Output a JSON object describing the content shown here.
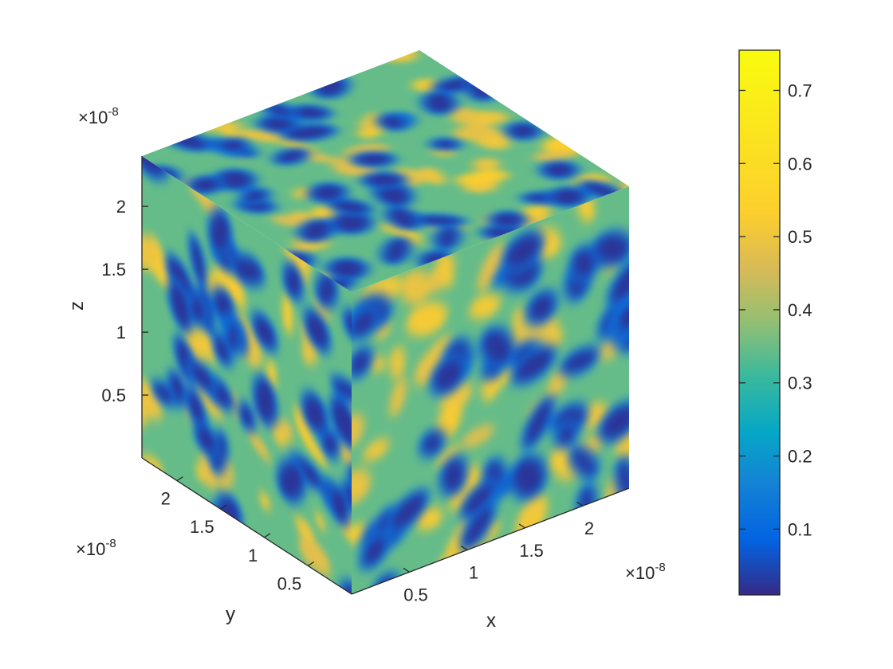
{
  "chart_data": {
    "type": "heatmap",
    "subtype": "3d-volume-slice-cube",
    "title": "",
    "xlabel": "x",
    "ylabel": "y",
    "zlabel": "z",
    "x_ticks": [
      "0.5",
      "1",
      "1.5",
      "2"
    ],
    "y_ticks": [
      "0.5",
      "1",
      "1.5",
      "2"
    ],
    "z_ticks": [
      "0.5",
      "1",
      "1.5",
      "2"
    ],
    "x_tick_values": [
      0.5,
      1,
      1.5,
      2
    ],
    "y_tick_values": [
      0.5,
      1,
      1.5,
      2
    ],
    "z_tick_values": [
      0.5,
      1,
      1.5,
      2
    ],
    "axis_range": [
      0,
      2.4
    ],
    "exponent_base": "×10",
    "exponent_power": "-8",
    "colormap": "parula",
    "colorbar": {
      "location": "right",
      "ticks": [
        "0.1",
        "0.2",
        "0.3",
        "0.4",
        "0.5",
        "0.6",
        "0.7"
      ],
      "tick_values": [
        0.1,
        0.2,
        0.3,
        0.4,
        0.5,
        0.6,
        0.7
      ],
      "range": [
        0.01,
        0.755
      ]
    },
    "grid": false,
    "faces_shown": [
      "top (z = max)",
      "left (x = 0)",
      "right (y = 0)"
    ]
  }
}
